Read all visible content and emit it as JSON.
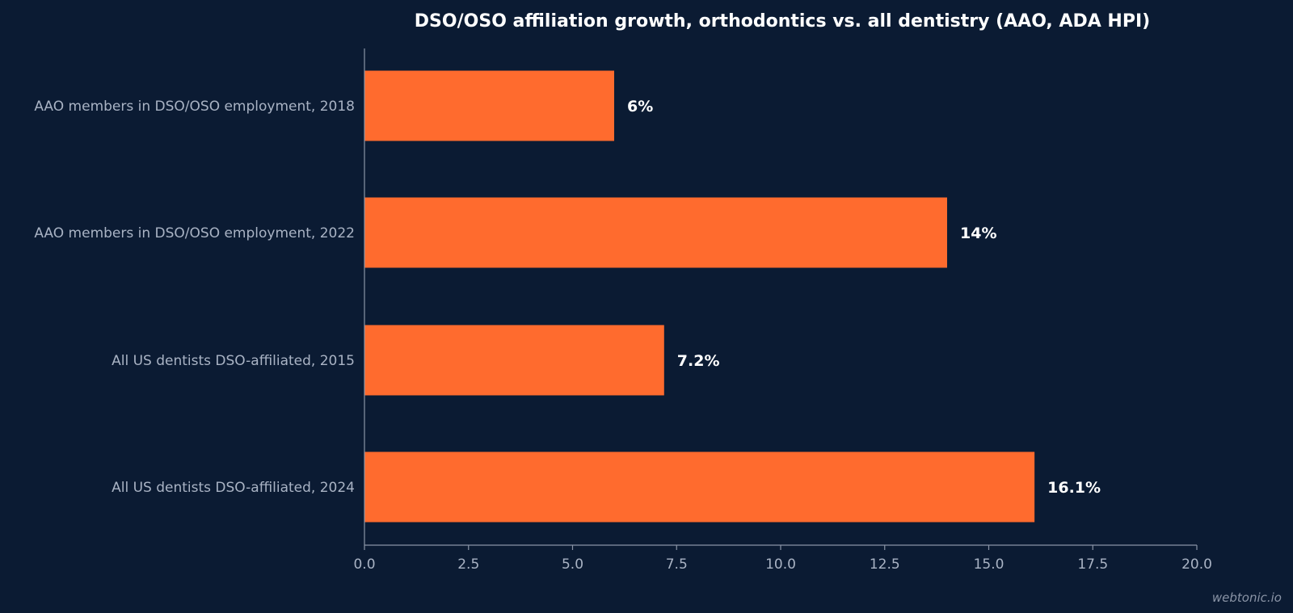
{
  "chart_data": {
    "type": "bar",
    "orientation": "horizontal",
    "title": "DSO/OSO affiliation growth, orthodontics vs. all dentistry (AAO, ADA HPI)",
    "xlabel": "",
    "ylabel": "",
    "categories": [
      "AAO members in DSO/OSO employment, 2018",
      "AAO members in DSO/OSO employment, 2022",
      "All US dentists DSO-affiliated, 2015",
      "All US dentists DSO-affiliated, 2024"
    ],
    "values": [
      6,
      14,
      7.2,
      16.1
    ],
    "value_labels": [
      "6%",
      "14%",
      "7.2%",
      "16.1%"
    ],
    "xlim": [
      0,
      20
    ],
    "x_ticks": [
      0,
      2.5,
      5,
      7.5,
      10,
      12.5,
      15,
      17.5,
      20
    ],
    "x_tick_labels": [
      "0.0",
      "2.5",
      "5.0",
      "7.5",
      "10.0",
      "12.5",
      "15.0",
      "17.5",
      "20.0"
    ],
    "grid": false,
    "legend": "none",
    "bar_color": "#ff6b2e",
    "background_color": "#0b1b33",
    "text_color": "#ffffff",
    "muted_text_color": "#a9b3c4",
    "axis_color": "#8a94a6"
  },
  "watermark": "webtonic.io"
}
